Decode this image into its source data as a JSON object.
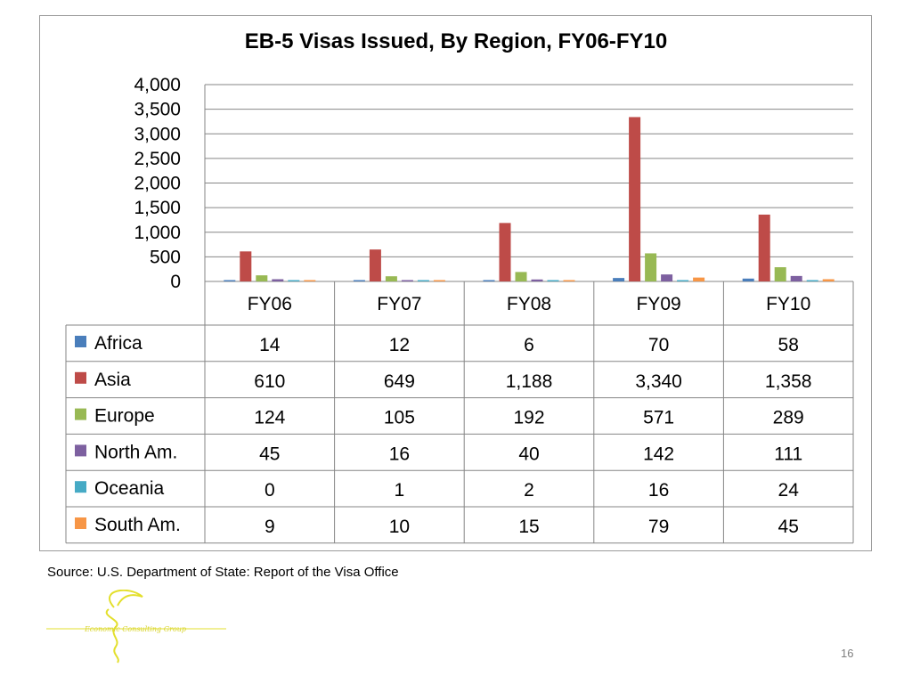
{
  "chart_data": {
    "type": "bar",
    "title": "EB-5 Visas Issued, By Region, FY06-FY10",
    "categories": [
      "FY06",
      "FY07",
      "FY08",
      "FY09",
      "FY10"
    ],
    "series": [
      {
        "name": "Africa",
        "color": "#4a7ebb",
        "values": [
          14,
          12,
          6,
          70,
          58
        ],
        "labels": [
          "14",
          "12",
          "6",
          "70",
          "58"
        ]
      },
      {
        "name": "Asia",
        "color": "#be4b48",
        "values": [
          610,
          649,
          1188,
          3340,
          1358
        ],
        "labels": [
          "610",
          "649",
          "1,188",
          "3,340",
          "1,358"
        ]
      },
      {
        "name": "Europe",
        "color": "#98b954",
        "values": [
          124,
          105,
          192,
          571,
          289
        ],
        "labels": [
          "124",
          "105",
          "192",
          "571",
          "289"
        ]
      },
      {
        "name": "North Am.",
        "color": "#7d60a0",
        "values": [
          45,
          16,
          40,
          142,
          111
        ],
        "labels": [
          "45",
          "16",
          "40",
          "142",
          "111"
        ]
      },
      {
        "name": "Oceania",
        "color": "#46aac5",
        "values": [
          0,
          1,
          2,
          16,
          24
        ],
        "labels": [
          "0",
          "1",
          "2",
          "16",
          "24"
        ]
      },
      {
        "name": "South Am.",
        "color": "#f79646",
        "values": [
          9,
          10,
          15,
          79,
          45
        ],
        "labels": [
          "9",
          "10",
          "15",
          "79",
          "45"
        ]
      }
    ],
    "ylim": [
      0,
      4000
    ],
    "yticks": [
      0,
      500,
      1000,
      1500,
      2000,
      2500,
      3000,
      3500,
      4000
    ],
    "ytick_labels": [
      "0",
      "500",
      "1,000",
      "1,500",
      "2,000",
      "2,500",
      "3,000",
      "3,500",
      "4,000"
    ],
    "grid": true,
    "legend": "data-table"
  },
  "source": "Source:  U.S. Department of State: Report of the Visa Office",
  "page_number": "16",
  "logo_text": "Economic Consulting Group"
}
